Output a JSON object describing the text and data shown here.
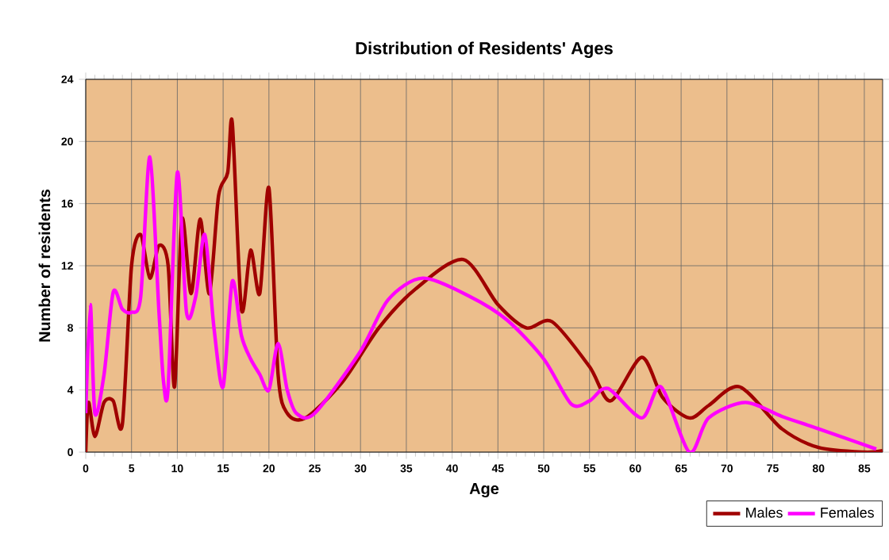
{
  "chart_data": {
    "type": "line",
    "title": "Distribution of Residents' Ages",
    "xlabel": "Age",
    "ylabel": "Number of residents",
    "xlim": [
      0,
      87
    ],
    "xticks": [
      0,
      5,
      10,
      15,
      20,
      25,
      30,
      35,
      40,
      45,
      50,
      55,
      60,
      65,
      70,
      75,
      80,
      85
    ],
    "ylim": [
      0,
      24
    ],
    "yticks": [
      0,
      4,
      8,
      12,
      16,
      20,
      24
    ],
    "grid": true,
    "legend": "bottom right",
    "marker": "none",
    "line_style": "solid",
    "series": [
      {
        "name": "Males",
        "color": "#a00000",
        "x": [
          0,
          0.3,
          1,
          2,
          3,
          4,
          5,
          6,
          7,
          8,
          9,
          9.7,
          10.5,
          11.5,
          12.5,
          13.5,
          14.5,
          15.5,
          16,
          17,
          18,
          19,
          20,
          21,
          22,
          24,
          28,
          32,
          36,
          41.2,
          45,
          48.1,
          50.9,
          55,
          57.3,
          60.7,
          63,
          65.9,
          68,
          71.4,
          76,
          80,
          85,
          87
        ],
        "values": [
          0,
          3.2,
          1,
          3.2,
          3.3,
          1.8,
          12,
          14,
          11.2,
          13.3,
          12,
          4.2,
          15,
          10.2,
          15,
          10.2,
          16.5,
          18,
          21.2,
          9.2,
          13,
          10.2,
          17,
          5,
          2.5,
          2.2,
          4.5,
          8,
          10.5,
          12.4,
          9.5,
          8,
          8.4,
          5.5,
          3.3,
          6.1,
          3.5,
          2.2,
          3,
          4.2,
          1.5,
          0.3,
          0,
          0.1
        ]
      },
      {
        "name": "Females",
        "color": "#ff00ff",
        "x": [
          0,
          0.5,
          1,
          2,
          3,
          4,
          5,
          6,
          7,
          8,
          8.5,
          9,
          10,
          11,
          12,
          13,
          14,
          15,
          16,
          17,
          18,
          19,
          20,
          21,
          22,
          23,
          25,
          30,
          33,
          36.8,
          42,
          46,
          50,
          53,
          55,
          57,
          60.7,
          62.8,
          65.9,
          68,
          72,
          76,
          80,
          86.3
        ],
        "values": [
          2.5,
          9.5,
          2.5,
          5,
          10.3,
          9.2,
          9,
          10,
          19,
          9,
          4.5,
          4.2,
          18,
          9,
          10,
          14,
          8,
          4.2,
          11,
          7.5,
          6,
          5,
          4,
          7,
          4,
          2.5,
          2.5,
          6.5,
          9.8,
          11.2,
          10,
          8.5,
          6,
          3.1,
          3.3,
          4.1,
          2.2,
          4.2,
          0,
          2.2,
          3.2,
          2.3,
          1.5,
          0.2
        ]
      }
    ]
  }
}
